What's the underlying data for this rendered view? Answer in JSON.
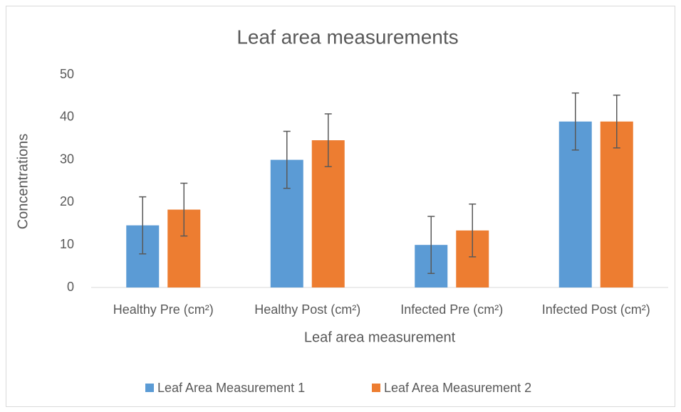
{
  "chart_data": {
    "type": "bar",
    "title": "Leaf area measurements",
    "x_label": "Leaf area measurement",
    "y_label": "Concentrations",
    "categories": [
      "Healthy Pre (cm²)",
      "Healthy Post (cm²)",
      "Infected Pre (cm²)",
      "Infected Post (cm²)"
    ],
    "series": [
      {
        "name": "Leaf Area Measurement 1",
        "color": "#5b9bd5",
        "values": [
          14.6,
          30,
          10,
          39
        ],
        "errors": [
          6.7,
          6.7,
          6.7,
          6.7
        ]
      },
      {
        "name": "Leaf Area Measurement 2",
        "color": "#ed7d31",
        "values": [
          18.3,
          34.6,
          13.4,
          39
        ],
        "errors": [
          6.2,
          6.2,
          6.2,
          6.2
        ]
      }
    ],
    "ylim": [
      0,
      50
    ],
    "yticks": [
      0,
      10,
      20,
      30,
      40,
      50
    ],
    "grid": false,
    "legend": "bottom"
  }
}
